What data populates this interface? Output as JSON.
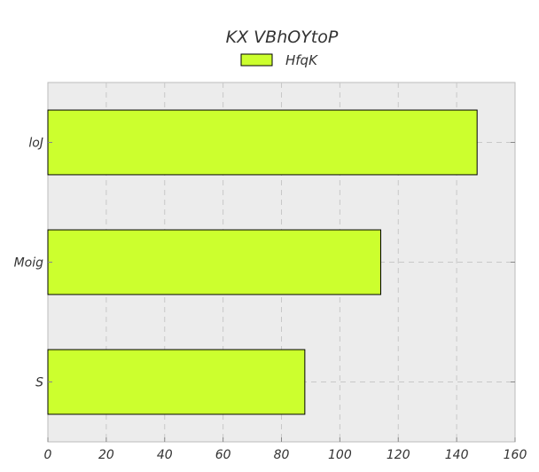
{
  "chart_data": {
    "type": "bar",
    "orientation": "horizontal",
    "title": "KX VBhOYtoP",
    "xlabel": "",
    "ylabel": "",
    "categories": [
      "loJ",
      "Moig",
      "S"
    ],
    "series": [
      {
        "name": "HfqK",
        "values": [
          147,
          114,
          88
        ],
        "color": "#ccff2e"
      }
    ],
    "xlim": [
      0,
      160
    ],
    "xticks": [
      0,
      20,
      40,
      60,
      80,
      100,
      120,
      140,
      160
    ],
    "xtick_labels": [
      "0",
      "20",
      "40",
      "60",
      "80",
      "100",
      "120",
      "140",
      "160"
    ],
    "grid": true,
    "legend": "top-center",
    "background_color": "#ececec"
  }
}
